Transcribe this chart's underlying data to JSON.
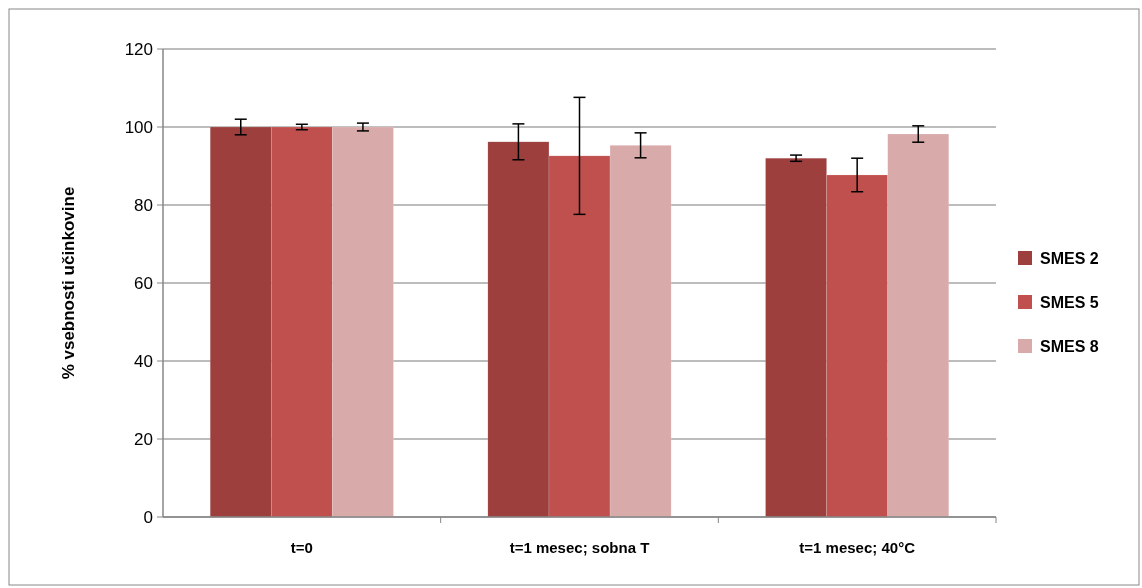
{
  "chart_data": {
    "type": "bar",
    "ylabel": "% vsebnosti učinkovine",
    "categories": [
      "t=0",
      "t=1 mesec; sobna T",
      "t=1 mesec; 40°C"
    ],
    "series": [
      {
        "name": "SMES 2",
        "color": "#9c3f3d",
        "values": [
          100,
          96.2,
          92
        ],
        "errors": [
          2,
          4.6,
          0.8
        ]
      },
      {
        "name": "SMES 5",
        "color": "#c0504d",
        "values": [
          100,
          92.6,
          87.7
        ],
        "errors": [
          0.7,
          15,
          4.3
        ]
      },
      {
        "name": "SMES 8",
        "color": "#d9aaaa",
        "values": [
          100,
          95.3,
          98.2
        ],
        "errors": [
          1,
          3.2,
          2.1
        ]
      }
    ],
    "ylim": [
      0,
      120
    ],
    "yticks": [
      0,
      20,
      40,
      60,
      80,
      100,
      120
    ],
    "grid": "y",
    "legend": "right"
  }
}
